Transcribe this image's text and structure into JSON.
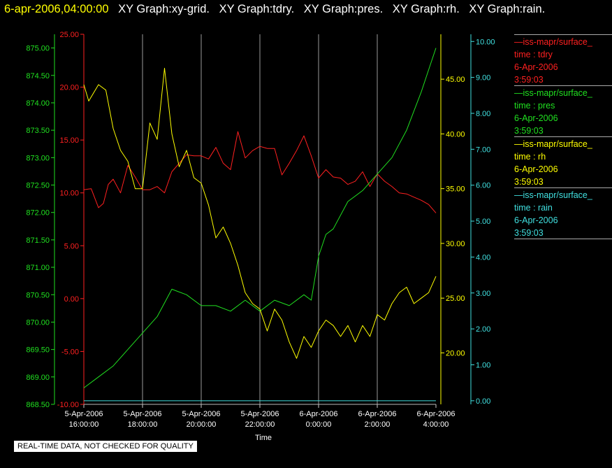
{
  "header": {
    "timestamp": "6-apr-2006,04:00:00",
    "graphs": [
      "XY Graph:xy-grid.",
      "XY Graph:tdry.",
      "XY Graph:pres.",
      "XY Graph:rh.",
      "XY Graph:rain."
    ]
  },
  "note": "REAL-TIME DATA, NOT CHECKED FOR QUALITY",
  "legend": [
    {
      "name": "—iss-mapr/surface_",
      "field": "time : tdry",
      "date": "6-Apr-2006",
      "time": "3:59:03",
      "color": "#ff2020"
    },
    {
      "name": "—iss-mapr/surface_",
      "field": "time : pres",
      "date": "6-Apr-2006",
      "time": "3:59:03",
      "color": "#20e020"
    },
    {
      "name": "—iss-mapr/surface_",
      "field": "time : rh",
      "date": "6-Apr-2006",
      "time": "3:59:03",
      "color": "#ffff00"
    },
    {
      "name": "—iss-mapr/surface_",
      "field": "time : rain",
      "date": "6-Apr-2006",
      "time": "3:59:03",
      "color": "#40e0e0"
    }
  ],
  "chart_data": {
    "type": "line",
    "xlabel": "Time",
    "x_ticks": [
      {
        "date": "5-Apr-2006",
        "time": "16:00:00"
      },
      {
        "date": "5-Apr-2006",
        "time": "18:00:00"
      },
      {
        "date": "5-Apr-2006",
        "time": "20:00:00"
      },
      {
        "date": "5-Apr-2006",
        "time": "22:00:00"
      },
      {
        "date": "6-Apr-2006",
        "time": "0:00:00"
      },
      {
        "date": "6-Apr-2006",
        "time": "2:00:00"
      },
      {
        "date": "6-Apr-2006",
        "time": "4:00:00"
      }
    ],
    "xlim": [
      "2006-04-05 16:00",
      "2006-04-06 04:00"
    ],
    "grid": "vertical",
    "axes": [
      {
        "id": "pres",
        "side": "left-outer",
        "color": "#20e020",
        "ylim": [
          868.5,
          875.25
        ],
        "ticks": [
          "868.50",
          "869.00",
          "869.50",
          "870.00",
          "870.50",
          "871.00",
          "871.50",
          "872.00",
          "872.50",
          "873.00",
          "873.50",
          "874.00",
          "874.50",
          "875.00"
        ]
      },
      {
        "id": "tdry",
        "side": "left-inner",
        "color": "#ff2020",
        "ylim": [
          -10,
          25
        ],
        "ticks": [
          "-10.00",
          "-5.00",
          "0.00",
          "5.00",
          "10.00",
          "15.00",
          "20.00",
          "25.00"
        ]
      },
      {
        "id": "rh",
        "side": "right-inner",
        "color": "#ffff00",
        "ylim": [
          15.3,
          49.1
        ],
        "ticks": [
          "20.00",
          "25.00",
          "30.00",
          "35.00",
          "40.00",
          "45.00"
        ]
      },
      {
        "id": "rain",
        "side": "right-outer",
        "color": "#40e0e0",
        "ylim": [
          -0.1,
          10.2
        ],
        "ticks": [
          "0.00",
          "1.00",
          "2.00",
          "3.00",
          "4.00",
          "5.00",
          "6.00",
          "7.00",
          "8.00",
          "9.00",
          "10.00"
        ]
      }
    ],
    "series": [
      {
        "axis": "tdry",
        "color": "#ff2020",
        "x": [
          "2006-04-05 16:00",
          "2006-04-05 16:15",
          "2006-04-05 16:30",
          "2006-04-05 16:40",
          "2006-04-05 16:50",
          "2006-04-05 17:00",
          "2006-04-05 17:15",
          "2006-04-05 17:30",
          "2006-04-05 17:45",
          "2006-04-05 18:00",
          "2006-04-05 18:15",
          "2006-04-05 18:30",
          "2006-04-05 18:45",
          "2006-04-05 19:00",
          "2006-04-05 19:15",
          "2006-04-05 19:30",
          "2006-04-05 19:45",
          "2006-04-05 20:00",
          "2006-04-05 20:15",
          "2006-04-05 20:30",
          "2006-04-05 20:45",
          "2006-04-05 21:00",
          "2006-04-05 21:15",
          "2006-04-05 21:30",
          "2006-04-05 21:45",
          "2006-04-05 22:00",
          "2006-04-05 22:15",
          "2006-04-05 22:30",
          "2006-04-05 22:45",
          "2006-04-05 23:00",
          "2006-04-05 23:15",
          "2006-04-05 23:30",
          "2006-04-05 23:45",
          "2006-04-06 00:00",
          "2006-04-06 00:15",
          "2006-04-06 00:30",
          "2006-04-06 00:45",
          "2006-04-06 01:00",
          "2006-04-06 01:15",
          "2006-04-06 01:30",
          "2006-04-06 01:45",
          "2006-04-06 02:00",
          "2006-04-06 02:15",
          "2006-04-06 02:30",
          "2006-04-06 02:45",
          "2006-04-06 03:00",
          "2006-04-06 03:15",
          "2006-04-06 03:30",
          "2006-04-06 03:45",
          "2006-04-06 04:00"
        ],
        "values": [
          10.3,
          10.4,
          8.6,
          9.0,
          10.8,
          11.3,
          10.0,
          12.6,
          11.5,
          10.3,
          10.3,
          10.6,
          10.0,
          12.0,
          12.8,
          13.6,
          13.5,
          13.5,
          13.2,
          14.3,
          12.8,
          12.2,
          15.8,
          13.3,
          14.0,
          14.4,
          14.2,
          14.2,
          11.7,
          12.8,
          14.0,
          15.4,
          13.5,
          11.4,
          12.2,
          11.5,
          11.4,
          10.8,
          11.1,
          12.0,
          10.6,
          11.8,
          11.1,
          10.6,
          10.0,
          9.9,
          9.6,
          9.3,
          8.9,
          8.1
        ]
      },
      {
        "axis": "pres",
        "color": "#20e020",
        "x": [
          "2006-04-05 16:00",
          "2006-04-05 16:30",
          "2006-04-05 17:00",
          "2006-04-05 17:30",
          "2006-04-05 18:00",
          "2006-04-05 18:30",
          "2006-04-05 19:00",
          "2006-04-05 19:30",
          "2006-04-05 20:00",
          "2006-04-05 20:30",
          "2006-04-05 21:00",
          "2006-04-05 21:30",
          "2006-04-05 22:00",
          "2006-04-05 22:30",
          "2006-04-05 23:00",
          "2006-04-05 23:30",
          "2006-04-05 23:45",
          "2006-04-06 00:00",
          "2006-04-06 00:15",
          "2006-04-06 00:30",
          "2006-04-06 01:00",
          "2006-04-06 01:30",
          "2006-04-06 02:00",
          "2006-04-06 02:30",
          "2006-04-06 03:00",
          "2006-04-06 03:30",
          "2006-04-06 03:45",
          "2006-04-06 04:00"
        ],
        "values": [
          868.8,
          869.0,
          869.2,
          869.5,
          869.8,
          870.1,
          870.6,
          870.5,
          870.3,
          870.3,
          870.2,
          870.4,
          870.2,
          870.4,
          870.3,
          870.5,
          870.4,
          871.2,
          871.6,
          871.7,
          872.2,
          872.4,
          872.7,
          873.0,
          873.5,
          874.2,
          874.6,
          875.0
        ]
      },
      {
        "axis": "rh",
        "color": "#ffff00",
        "x": [
          "2006-04-05 16:00",
          "2006-04-05 16:10",
          "2006-04-05 16:30",
          "2006-04-05 16:45",
          "2006-04-05 17:00",
          "2006-04-05 17:15",
          "2006-04-05 17:30",
          "2006-04-05 17:45",
          "2006-04-05 18:00",
          "2006-04-05 18:15",
          "2006-04-05 18:30",
          "2006-04-05 18:45",
          "2006-04-05 19:00",
          "2006-04-05 19:15",
          "2006-04-05 19:30",
          "2006-04-05 19:45",
          "2006-04-05 20:00",
          "2006-04-05 20:15",
          "2006-04-05 20:30",
          "2006-04-05 20:45",
          "2006-04-05 21:00",
          "2006-04-05 21:15",
          "2006-04-05 21:30",
          "2006-04-05 21:45",
          "2006-04-05 22:00",
          "2006-04-05 22:15",
          "2006-04-05 22:30",
          "2006-04-05 22:45",
          "2006-04-05 23:00",
          "2006-04-05 23:15",
          "2006-04-05 23:30",
          "2006-04-05 23:45",
          "2006-04-06 00:00",
          "2006-04-06 00:15",
          "2006-04-06 00:30",
          "2006-04-06 00:45",
          "2006-04-06 01:00",
          "2006-04-06 01:15",
          "2006-04-06 01:30",
          "2006-04-06 01:45",
          "2006-04-06 02:00",
          "2006-04-06 02:15",
          "2006-04-06 02:30",
          "2006-04-06 02:45",
          "2006-04-06 03:00",
          "2006-04-06 03:15",
          "2006-04-06 03:30",
          "2006-04-06 03:45",
          "2006-04-06 04:00"
        ],
        "values": [
          44.5,
          43.0,
          44.5,
          44.0,
          40.5,
          38.5,
          37.5,
          35.0,
          35.0,
          41.0,
          39.5,
          46.0,
          40.0,
          37.0,
          38.5,
          36.0,
          35.5,
          33.5,
          30.5,
          31.5,
          30.0,
          28.0,
          25.5,
          24.5,
          24.0,
          22.0,
          24.0,
          23.0,
          21.0,
          19.5,
          21.5,
          20.5,
          22.0,
          23.0,
          22.5,
          21.5,
          22.5,
          21.0,
          22.5,
          21.5,
          23.5,
          23.0,
          24.5,
          25.5,
          26.0,
          24.5,
          25.0,
          25.5,
          27.0
        ]
      },
      {
        "axis": "rain",
        "color": "#40e0e0",
        "x": [
          "2006-04-05 16:00",
          "2006-04-06 04:00"
        ],
        "values": [
          0.0,
          0.0
        ]
      }
    ]
  }
}
